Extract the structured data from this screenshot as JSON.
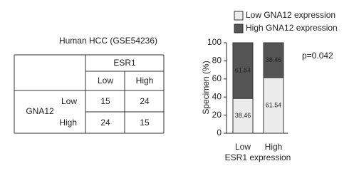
{
  "table": {
    "title": "Human HCC (GSE54236)",
    "column_group": "ESR1",
    "columns": [
      "Low",
      "High"
    ],
    "row_group": "GNA12",
    "rows": [
      [
        "Low",
        15,
        24
      ],
      [
        "High",
        24,
        15
      ]
    ]
  },
  "chart_data": {
    "type": "stacked_bar",
    "categories": [
      "Low",
      "High"
    ],
    "x_label": "ESR1 expression",
    "y_label": "Specimen (%)",
    "series": [
      {
        "name": "Low GNA12 expression",
        "color": "#ececec",
        "values": [
          38.46,
          61.54
        ]
      },
      {
        "name": "High GNA12 expression",
        "color": "#555555",
        "values": [
          61.54,
          38.46
        ]
      }
    ],
    "ylim": [
      0,
      100
    ],
    "yticks": [
      0,
      20,
      40,
      60,
      80,
      100
    ],
    "annotation": "p=0.042"
  }
}
